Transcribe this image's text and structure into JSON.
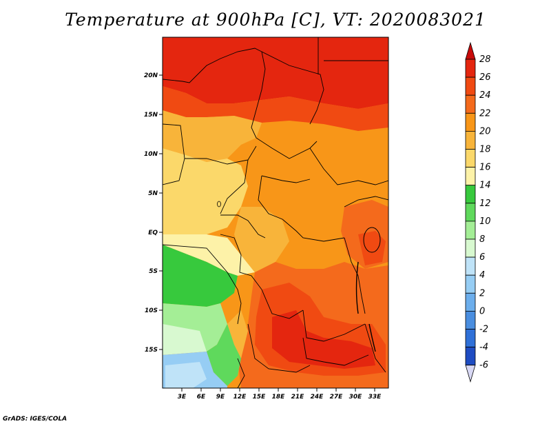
{
  "title": "Temperature at 900hPa [C], VT: 2020083021",
  "credit": "GrADS: IGES/COLA",
  "lat_labels": [
    "20N",
    "15N",
    "10N",
    "5N",
    "EQ",
    "5S",
    "10S",
    "15S"
  ],
  "lon_labels": [
    "3E",
    "6E",
    "9E",
    "12E",
    "15E",
    "18E",
    "21E",
    "24E",
    "27E",
    "30E",
    "33E"
  ],
  "colorbar": {
    "labels": [
      "28",
      "26",
      "24",
      "22",
      "20",
      "18",
      "16",
      "14",
      "12",
      "10",
      "8",
      "6",
      "4",
      "2",
      "0",
      "-2",
      "-4",
      "-6"
    ],
    "colors_top_to_bottom": [
      "#e4260f",
      "#f04a12",
      "#f46a1c",
      "#f89618",
      "#f8b43a",
      "#fbd86a",
      "#fdf2a8",
      "#37c93d",
      "#5fd95c",
      "#a4ee96",
      "#d8f9d0",
      "#bfe3f8",
      "#96cdf4",
      "#6caeec",
      "#4a8ee0",
      "#2f70d8",
      "#1e4cc2",
      "#12249e"
    ],
    "over_color": "#c80a0a",
    "under_color": "#d8d8f4"
  }
}
